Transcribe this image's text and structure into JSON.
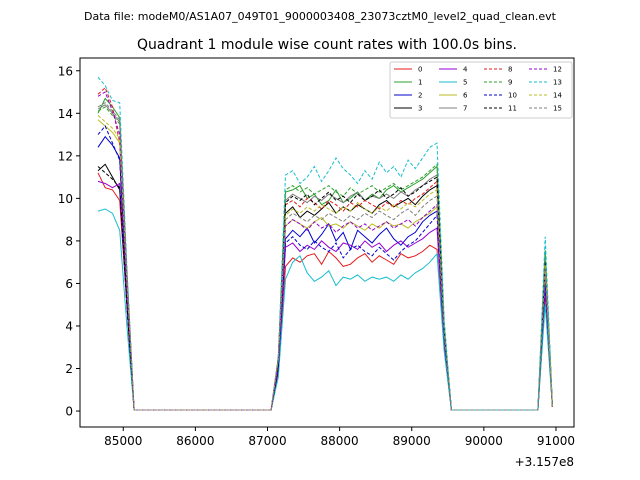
{
  "figure": {
    "suptitle": "Data file: modeM0/AS1A07_049T01_9000003408_23073cztM0_level2_quad_clean.evt"
  },
  "chart_data": {
    "type": "line",
    "title": "Quadrant 1 module wise count rates with 100.0s bins.",
    "xlabel": "",
    "ylabel": "",
    "x_offset_label": "+3.157e8",
    "xlim": [
      84400,
      91250
    ],
    "ylim": [
      -0.75,
      16.6
    ],
    "xticks": [
      85000,
      86000,
      87000,
      88000,
      89000,
      90000,
      91000
    ],
    "yticks": [
      0,
      2,
      4,
      6,
      8,
      10,
      12,
      14,
      16
    ],
    "grid": false,
    "legend_position": "top-right",
    "legend_columns": 4,
    "x": [
      84650,
      84750,
      84850,
      84950,
      85050,
      85150,
      85250,
      85350,
      85450,
      85550,
      85650,
      85750,
      85850,
      85950,
      86050,
      86150,
      86250,
      86350,
      86450,
      86550,
      86650,
      86750,
      86850,
      86950,
      87050,
      87150,
      87250,
      87350,
      87450,
      87550,
      87650,
      87750,
      87850,
      87950,
      88050,
      88150,
      88250,
      88350,
      88450,
      88550,
      88650,
      88750,
      88850,
      88950,
      89050,
      89150,
      89250,
      89350,
      89450,
      89550,
      89650,
      89750,
      89850,
      89950,
      90050,
      90150,
      90250,
      90350,
      90450,
      90550,
      90650,
      90750,
      90850,
      90950
    ],
    "series": [
      {
        "name": "0",
        "color": "#e41a1c",
        "dash": "solid",
        "values": [
          11.2,
          10.5,
          10.4,
          9.9,
          5.0,
          0.05,
          0.05,
          0.05,
          0.05,
          0.05,
          0.05,
          0.05,
          0.05,
          0.05,
          0.05,
          0.05,
          0.05,
          0.05,
          0.05,
          0.05,
          0.05,
          0.05,
          0.05,
          0.05,
          0.05,
          1.8,
          6.8,
          7.2,
          7.0,
          7.3,
          7.4,
          6.9,
          7.5,
          7.2,
          6.8,
          6.9,
          7.2,
          7.4,
          7.0,
          7.3,
          7.1,
          6.9,
          7.4,
          7.2,
          7.3,
          7.5,
          7.8,
          7.6,
          3.0,
          0.05,
          0.05,
          0.05,
          0.05,
          0.05,
          0.05,
          0.05,
          0.05,
          0.05,
          0.05,
          0.05,
          0.05,
          0.05,
          5.5,
          0.2
        ]
      },
      {
        "name": "1",
        "color": "#2ca02c",
        "dash": "solid",
        "values": [
          14.0,
          14.7,
          14.3,
          13.8,
          6.5,
          0.05,
          0.05,
          0.05,
          0.05,
          0.05,
          0.05,
          0.05,
          0.05,
          0.05,
          0.05,
          0.05,
          0.05,
          0.05,
          0.05,
          0.05,
          0.05,
          0.05,
          0.05,
          0.05,
          0.05,
          2.5,
          10.3,
          10.4,
          10.6,
          10.0,
          10.2,
          9.7,
          9.9,
          10.4,
          9.8,
          10.0,
          10.3,
          9.9,
          10.2,
          10.0,
          10.4,
          10.6,
          10.3,
          10.5,
          10.7,
          10.9,
          11.2,
          11.5,
          4.0,
          0.05,
          0.05,
          0.05,
          0.05,
          0.05,
          0.05,
          0.05,
          0.05,
          0.05,
          0.05,
          0.05,
          0.05,
          0.05,
          7.5,
          0.3
        ]
      },
      {
        "name": "2",
        "color": "#0000cc",
        "dash": "solid",
        "values": [
          12.4,
          12.9,
          12.5,
          11.9,
          5.5,
          0.05,
          0.05,
          0.05,
          0.05,
          0.05,
          0.05,
          0.05,
          0.05,
          0.05,
          0.05,
          0.05,
          0.05,
          0.05,
          0.05,
          0.05,
          0.05,
          0.05,
          0.05,
          0.05,
          0.05,
          2.0,
          8.1,
          8.5,
          8.2,
          8.6,
          7.9,
          8.3,
          8.8,
          8.0,
          8.4,
          7.6,
          8.5,
          8.2,
          7.9,
          8.3,
          8.6,
          8.1,
          7.8,
          8.2,
          8.4,
          8.9,
          9.2,
          9.4,
          3.5,
          0.05,
          0.05,
          0.05,
          0.05,
          0.05,
          0.05,
          0.05,
          0.05,
          0.05,
          0.05,
          0.05,
          0.05,
          0.05,
          6.0,
          0.2
        ]
      },
      {
        "name": "3",
        "color": "#000000",
        "dash": "solid",
        "values": [
          11.3,
          11.6,
          11.0,
          10.4,
          5.0,
          0.05,
          0.05,
          0.05,
          0.05,
          0.05,
          0.05,
          0.05,
          0.05,
          0.05,
          0.05,
          0.05,
          0.05,
          0.05,
          0.05,
          0.05,
          0.05,
          0.05,
          0.05,
          0.05,
          0.05,
          2.2,
          9.3,
          9.6,
          9.1,
          9.4,
          9.2,
          9.5,
          9.8,
          9.3,
          9.6,
          9.4,
          9.7,
          9.5,
          9.3,
          9.7,
          9.9,
          9.6,
          9.8,
          10.0,
          9.7,
          10.1,
          10.4,
          10.6,
          3.8,
          0.05,
          0.05,
          0.05,
          0.05,
          0.05,
          0.05,
          0.05,
          0.05,
          0.05,
          0.05,
          0.05,
          0.05,
          0.05,
          6.8,
          0.2
        ]
      },
      {
        "name": "4",
        "color": "#9400d3",
        "dash": "solid",
        "values": [
          10.8,
          10.7,
          10.5,
          10.7,
          5.0,
          0.05,
          0.05,
          0.05,
          0.05,
          0.05,
          0.05,
          0.05,
          0.05,
          0.05,
          0.05,
          0.05,
          0.05,
          0.05,
          0.05,
          0.05,
          0.05,
          0.05,
          0.05,
          0.05,
          0.05,
          1.9,
          7.7,
          7.9,
          7.5,
          7.8,
          7.6,
          8.0,
          7.7,
          7.5,
          7.9,
          7.8,
          7.6,
          8.0,
          7.7,
          7.9,
          7.5,
          7.8,
          8.0,
          7.7,
          7.9,
          8.1,
          8.4,
          8.6,
          3.2,
          0.05,
          0.05,
          0.05,
          0.05,
          0.05,
          0.05,
          0.05,
          0.05,
          0.05,
          0.05,
          0.05,
          0.05,
          0.05,
          5.8,
          0.2
        ]
      },
      {
        "name": "5",
        "color": "#17becf",
        "dash": "solid",
        "values": [
          9.4,
          9.5,
          9.3,
          8.5,
          4.0,
          0.05,
          0.05,
          0.05,
          0.05,
          0.05,
          0.05,
          0.05,
          0.05,
          0.05,
          0.05,
          0.05,
          0.05,
          0.05,
          0.05,
          0.05,
          0.05,
          0.05,
          0.05,
          0.05,
          0.05,
          1.6,
          6.2,
          7.0,
          7.3,
          6.5,
          6.1,
          6.3,
          6.6,
          5.9,
          6.3,
          6.2,
          6.4,
          6.1,
          6.3,
          6.2,
          6.3,
          6.1,
          6.4,
          6.2,
          6.5,
          6.7,
          7.0,
          7.4,
          2.8,
          0.05,
          0.05,
          0.05,
          0.05,
          0.05,
          0.05,
          0.05,
          0.05,
          0.05,
          0.05,
          0.05,
          0.05,
          0.05,
          5.0,
          0.2
        ]
      },
      {
        "name": "6",
        "color": "#bcbd22",
        "dash": "solid",
        "values": [
          13.7,
          13.4,
          13.1,
          12.6,
          6.0,
          0.05,
          0.05,
          0.05,
          0.05,
          0.05,
          0.05,
          0.05,
          0.05,
          0.05,
          0.05,
          0.05,
          0.05,
          0.05,
          0.05,
          0.05,
          0.05,
          0.05,
          0.05,
          0.05,
          0.05,
          2.3,
          8.7,
          9.0,
          8.8,
          8.6,
          8.9,
          9.1,
          8.7,
          8.8,
          8.6,
          8.9,
          8.7,
          8.5,
          8.8,
          8.6,
          8.9,
          8.7,
          8.8,
          8.6,
          8.9,
          9.1,
          9.3,
          9.6,
          3.6,
          0.05,
          0.05,
          0.05,
          0.05,
          0.05,
          0.05,
          0.05,
          0.05,
          0.05,
          0.05,
          0.05,
          0.05,
          0.05,
          6.5,
          0.2
        ]
      },
      {
        "name": "7",
        "color": "#7f7f7f",
        "dash": "solid",
        "values": [
          14.2,
          14.4,
          14.0,
          13.6,
          6.5,
          0.05,
          0.05,
          0.05,
          0.05,
          0.05,
          0.05,
          0.05,
          0.05,
          0.05,
          0.05,
          0.05,
          0.05,
          0.05,
          0.05,
          0.05,
          0.05,
          0.05,
          0.05,
          0.05,
          0.05,
          2.4,
          9.9,
          10.2,
          10.0,
          9.8,
          10.1,
          9.9,
          10.2,
          10.0,
          9.8,
          10.1,
          10.3,
          9.9,
          10.1,
          10.0,
          10.2,
          10.0,
          10.3,
          10.1,
          10.4,
          10.6,
          10.9,
          11.1,
          3.9,
          0.05,
          0.05,
          0.05,
          0.05,
          0.05,
          0.05,
          0.05,
          0.05,
          0.05,
          0.05,
          0.05,
          0.05,
          0.05,
          7.2,
          0.2
        ]
      },
      {
        "name": "8",
        "color": "#e41a1c",
        "dash": "dashed",
        "values": [
          14.9,
          15.2,
          14.3,
          12.6,
          6.0,
          0.05,
          0.05,
          0.05,
          0.05,
          0.05,
          0.05,
          0.05,
          0.05,
          0.05,
          0.05,
          0.05,
          0.05,
          0.05,
          0.05,
          0.05,
          0.05,
          0.05,
          0.05,
          0.05,
          0.05,
          2.5,
          9.7,
          9.9,
          9.6,
          10.0,
          9.8,
          9.5,
          9.9,
          9.7,
          9.4,
          9.8,
          9.6,
          9.9,
          9.7,
          9.5,
          9.8,
          9.6,
          9.9,
          9.7,
          10.0,
          10.2,
          10.5,
          10.8,
          3.8,
          0.05,
          0.05,
          0.05,
          0.05,
          0.05,
          0.05,
          0.05,
          0.05,
          0.05,
          0.05,
          0.05,
          0.05,
          0.05,
          7.0,
          0.2
        ]
      },
      {
        "name": "9",
        "color": "#2ca02c",
        "dash": "dashed",
        "values": [
          14.1,
          14.3,
          13.9,
          13.5,
          6.4,
          0.05,
          0.05,
          0.05,
          0.05,
          0.05,
          0.05,
          0.05,
          0.05,
          0.05,
          0.05,
          0.05,
          0.05,
          0.05,
          0.05,
          0.05,
          0.05,
          0.05,
          0.05,
          0.05,
          0.05,
          2.4,
          10.4,
          10.6,
          10.3,
          10.5,
          10.2,
          10.4,
          10.6,
          10.3,
          10.1,
          10.5,
          10.2,
          10.4,
          10.6,
          10.3,
          10.5,
          10.7,
          10.4,
          10.6,
          10.8,
          11.0,
          11.3,
          11.6,
          4.0,
          0.05,
          0.05,
          0.05,
          0.05,
          0.05,
          0.05,
          0.05,
          0.05,
          0.05,
          0.05,
          0.05,
          0.05,
          0.05,
          7.6,
          0.3
        ]
      },
      {
        "name": "10",
        "color": "#0000cc",
        "dash": "dashed",
        "values": [
          13.0,
          13.4,
          12.6,
          11.8,
          5.6,
          0.05,
          0.05,
          0.05,
          0.05,
          0.05,
          0.05,
          0.05,
          0.05,
          0.05,
          0.05,
          0.05,
          0.05,
          0.05,
          0.05,
          0.05,
          0.05,
          0.05,
          0.05,
          0.05,
          0.05,
          2.0,
          7.9,
          8.2,
          7.8,
          7.6,
          8.0,
          7.7,
          7.5,
          7.9,
          7.2,
          7.6,
          7.8,
          7.5,
          7.3,
          7.7,
          7.4,
          7.1,
          7.5,
          7.8,
          8.0,
          8.4,
          8.8,
          9.2,
          3.3,
          0.05,
          0.05,
          0.05,
          0.05,
          0.05,
          0.05,
          0.05,
          0.05,
          0.05,
          0.05,
          0.05,
          0.05,
          0.05,
          6.0,
          0.2
        ]
      },
      {
        "name": "11",
        "color": "#000000",
        "dash": "dashed",
        "values": [
          11.5,
          11.2,
          10.9,
          10.5,
          5.0,
          0.05,
          0.05,
          0.05,
          0.05,
          0.05,
          0.05,
          0.05,
          0.05,
          0.05,
          0.05,
          0.05,
          0.05,
          0.05,
          0.05,
          0.05,
          0.05,
          0.05,
          0.05,
          0.05,
          0.05,
          2.1,
          9.8,
          10.1,
          9.9,
          10.2,
          9.7,
          10.0,
          10.3,
          9.9,
          10.1,
          9.8,
          10.2,
          9.9,
          10.1,
          10.4,
          10.0,
          10.2,
          10.5,
          10.1,
          10.3,
          10.6,
          10.8,
          11.0,
          3.8,
          0.05,
          0.05,
          0.05,
          0.05,
          0.05,
          0.05,
          0.05,
          0.05,
          0.05,
          0.05,
          0.05,
          0.05,
          0.05,
          7.0,
          0.2
        ]
      },
      {
        "name": "12",
        "color": "#9400d3",
        "dash": "dashed",
        "values": [
          14.8,
          15.0,
          14.1,
          13.0,
          6.2,
          0.05,
          0.05,
          0.05,
          0.05,
          0.05,
          0.05,
          0.05,
          0.05,
          0.05,
          0.05,
          0.05,
          0.05,
          0.05,
          0.05,
          0.05,
          0.05,
          0.05,
          0.05,
          0.05,
          0.05,
          2.3,
          8.7,
          9.0,
          8.8,
          8.5,
          8.9,
          8.6,
          8.8,
          8.4,
          8.7,
          8.9,
          8.6,
          8.8,
          8.5,
          8.7,
          8.9,
          8.6,
          8.8,
          9.0,
          8.7,
          9.1,
          9.4,
          9.7,
          3.5,
          0.05,
          0.05,
          0.05,
          0.05,
          0.05,
          0.05,
          0.05,
          0.05,
          0.05,
          0.05,
          0.05,
          0.05,
          0.05,
          6.6,
          0.2
        ]
      },
      {
        "name": "13",
        "color": "#17becf",
        "dash": "dashed",
        "values": [
          15.7,
          15.3,
          14.6,
          14.5,
          6.8,
          0.05,
          0.05,
          0.05,
          0.05,
          0.05,
          0.05,
          0.05,
          0.05,
          0.05,
          0.05,
          0.05,
          0.05,
          0.05,
          0.05,
          0.05,
          0.05,
          0.05,
          0.05,
          0.05,
          0.05,
          2.6,
          11.1,
          11.3,
          10.7,
          11.0,
          11.5,
          10.8,
          11.3,
          11.9,
          11.4,
          11.1,
          10.7,
          11.3,
          10.9,
          11.7,
          11.2,
          11.5,
          11.0,
          11.8,
          11.4,
          11.9,
          12.4,
          12.6,
          4.3,
          0.05,
          0.05,
          0.05,
          0.05,
          0.05,
          0.05,
          0.05,
          0.05,
          0.05,
          0.05,
          0.05,
          0.05,
          0.05,
          8.2,
          0.3
        ]
      },
      {
        "name": "14",
        "color": "#bcbd22",
        "dash": "dashed",
        "values": [
          13.9,
          13.6,
          13.3,
          12.8,
          6.0,
          0.05,
          0.05,
          0.05,
          0.05,
          0.05,
          0.05,
          0.05,
          0.05,
          0.05,
          0.05,
          0.05,
          0.05,
          0.05,
          0.05,
          0.05,
          0.05,
          0.05,
          0.05,
          0.05,
          0.05,
          2.4,
          9.2,
          9.5,
          9.3,
          9.6,
          9.4,
          9.7,
          9.5,
          9.3,
          9.6,
          9.4,
          9.8,
          9.5,
          9.3,
          9.6,
          9.4,
          9.7,
          9.5,
          9.8,
          9.6,
          9.9,
          10.2,
          10.4,
          3.7,
          0.05,
          0.05,
          0.05,
          0.05,
          0.05,
          0.05,
          0.05,
          0.05,
          0.05,
          0.05,
          0.05,
          0.05,
          0.05,
          6.9,
          0.2
        ]
      },
      {
        "name": "15",
        "color": "#7f7f7f",
        "dash": "dashed",
        "values": [
          14.3,
          14.5,
          14.1,
          13.7,
          6.5,
          0.05,
          0.05,
          0.05,
          0.05,
          0.05,
          0.05,
          0.05,
          0.05,
          0.05,
          0.05,
          0.05,
          0.05,
          0.05,
          0.05,
          0.05,
          0.05,
          0.05,
          0.05,
          0.05,
          0.05,
          2.5,
          9.0,
          9.3,
          9.1,
          8.9,
          9.2,
          9.0,
          9.3,
          9.1,
          8.9,
          9.2,
          9.0,
          9.3,
          9.1,
          9.4,
          9.2,
          9.0,
          9.3,
          9.5,
          9.2,
          9.6,
          9.9,
          10.1,
          3.6,
          0.05,
          0.05,
          0.05,
          0.05,
          0.05,
          0.05,
          0.05,
          0.05,
          0.05,
          0.05,
          0.05,
          0.05,
          0.05,
          6.7,
          0.2
        ]
      }
    ]
  }
}
